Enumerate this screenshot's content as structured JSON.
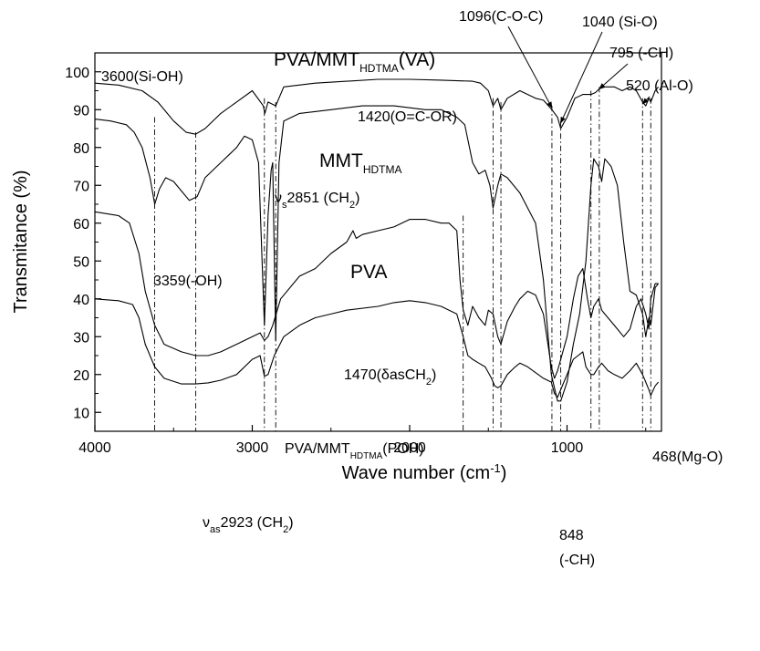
{
  "chart_data": {
    "type": "line",
    "title": "",
    "xlabel": "Wave number (cm-1)",
    "ylabel": "Transmitance (%)",
    "x_reversed": true,
    "xlim": [
      4000,
      400
    ],
    "ylim": [
      5,
      105
    ],
    "x_ticks": [
      4000,
      3000,
      2000,
      1000
    ],
    "y_ticks": [
      10,
      20,
      30,
      40,
      50,
      60,
      70,
      80,
      90,
      100
    ],
    "grid": false,
    "series": [
      {
        "name": "PVA/MMT_HDTMA (VA)",
        "points": [
          [
            4000,
            97
          ],
          [
            3850,
            96.5
          ],
          [
            3700,
            95
          ],
          [
            3600,
            92
          ],
          [
            3500,
            87
          ],
          [
            3420,
            84
          ],
          [
            3360,
            83.5
          ],
          [
            3300,
            85
          ],
          [
            3200,
            89
          ],
          [
            3100,
            92
          ],
          [
            3000,
            95
          ],
          [
            2930,
            91
          ],
          [
            2920,
            89
          ],
          [
            2900,
            92
          ],
          [
            2851,
            91
          ],
          [
            2800,
            96
          ],
          [
            2600,
            97
          ],
          [
            2400,
            97.5
          ],
          [
            2200,
            98
          ],
          [
            2000,
            98
          ],
          [
            1800,
            97.8
          ],
          [
            1600,
            97.5
          ],
          [
            1550,
            97
          ],
          [
            1500,
            95
          ],
          [
            1470,
            91
          ],
          [
            1440,
            93
          ],
          [
            1420,
            90
          ],
          [
            1380,
            93
          ],
          [
            1300,
            95
          ],
          [
            1200,
            93
          ],
          [
            1150,
            92.5
          ],
          [
            1096,
            90
          ],
          [
            1060,
            88
          ],
          [
            1040,
            85
          ],
          [
            1000,
            88
          ],
          [
            950,
            93
          ],
          [
            900,
            94
          ],
          [
            848,
            94
          ],
          [
            820,
            94.5
          ],
          [
            795,
            95.5
          ],
          [
            760,
            96
          ],
          [
            700,
            96
          ],
          [
            650,
            95
          ],
          [
            600,
            96
          ],
          [
            560,
            95
          ],
          [
            520,
            92
          ],
          [
            500,
            91
          ],
          [
            480,
            93
          ],
          [
            468,
            92
          ],
          [
            440,
            95
          ],
          [
            420,
            96
          ]
        ]
      },
      {
        "name": "MMT_HDTMA",
        "points": [
          [
            4000,
            87.5
          ],
          [
            3900,
            87
          ],
          [
            3800,
            86
          ],
          [
            3750,
            84
          ],
          [
            3700,
            80
          ],
          [
            3650,
            72
          ],
          [
            3620,
            65
          ],
          [
            3590,
            69
          ],
          [
            3550,
            72
          ],
          [
            3500,
            71
          ],
          [
            3450,
            68.5
          ],
          [
            3400,
            66
          ],
          [
            3350,
            67
          ],
          [
            3300,
            72
          ],
          [
            3200,
            76
          ],
          [
            3100,
            80
          ],
          [
            3050,
            83
          ],
          [
            3000,
            82
          ],
          [
            2960,
            76
          ],
          [
            2923,
            33
          ],
          [
            2900,
            62
          ],
          [
            2880,
            74
          ],
          [
            2870,
            76
          ],
          [
            2851,
            29
          ],
          [
            2830,
            76
          ],
          [
            2800,
            87
          ],
          [
            2700,
            89
          ],
          [
            2500,
            90
          ],
          [
            2300,
            91
          ],
          [
            2100,
            91
          ],
          [
            1900,
            90
          ],
          [
            1800,
            90
          ],
          [
            1700,
            88
          ],
          [
            1650,
            86
          ],
          [
            1600,
            76
          ],
          [
            1560,
            73
          ],
          [
            1520,
            74
          ],
          [
            1490,
            70
          ],
          [
            1470,
            64
          ],
          [
            1440,
            70
          ],
          [
            1420,
            73
          ],
          [
            1380,
            72
          ],
          [
            1300,
            68
          ],
          [
            1200,
            60
          ],
          [
            1150,
            45
          ],
          [
            1100,
            20
          ],
          [
            1060,
            13
          ],
          [
            1040,
            13
          ],
          [
            1000,
            18
          ],
          [
            960,
            28
          ],
          [
            920,
            36
          ],
          [
            880,
            50
          ],
          [
            848,
            70
          ],
          [
            830,
            77
          ],
          [
            815,
            76
          ],
          [
            800,
            75
          ],
          [
            780,
            71
          ],
          [
            760,
            77
          ],
          [
            720,
            75
          ],
          [
            680,
            70
          ],
          [
            640,
            55
          ],
          [
            600,
            42
          ],
          [
            560,
            41
          ],
          [
            520,
            36
          ],
          [
            500,
            30
          ],
          [
            480,
            35
          ],
          [
            468,
            33
          ],
          [
            440,
            43
          ],
          [
            420,
            44
          ]
        ]
      },
      {
        "name": "PVA",
        "points": [
          [
            4000,
            63
          ],
          [
            3850,
            62
          ],
          [
            3780,
            60
          ],
          [
            3720,
            52
          ],
          [
            3680,
            42
          ],
          [
            3620,
            33
          ],
          [
            3560,
            28
          ],
          [
            3450,
            26
          ],
          [
            3360,
            25
          ],
          [
            3280,
            25
          ],
          [
            3200,
            26
          ],
          [
            3100,
            28
          ],
          [
            3000,
            30
          ],
          [
            2950,
            31
          ],
          [
            2923,
            29
          ],
          [
            2900,
            30
          ],
          [
            2870,
            33
          ],
          [
            2820,
            40
          ],
          [
            2700,
            46
          ],
          [
            2600,
            48
          ],
          [
            2500,
            52
          ],
          [
            2400,
            55
          ],
          [
            2360,
            58
          ],
          [
            2340,
            56
          ],
          [
            2300,
            57
          ],
          [
            2200,
            58
          ],
          [
            2100,
            59
          ],
          [
            2000,
            61
          ],
          [
            1900,
            61
          ],
          [
            1800,
            60
          ],
          [
            1750,
            60
          ],
          [
            1700,
            58
          ],
          [
            1680,
            45
          ],
          [
            1660,
            37
          ],
          [
            1630,
            33
          ],
          [
            1600,
            38
          ],
          [
            1560,
            35
          ],
          [
            1520,
            33
          ],
          [
            1500,
            37
          ],
          [
            1470,
            36
          ],
          [
            1440,
            30
          ],
          [
            1420,
            28
          ],
          [
            1380,
            34
          ],
          [
            1330,
            38
          ],
          [
            1300,
            40
          ],
          [
            1250,
            42
          ],
          [
            1200,
            41
          ],
          [
            1150,
            36
          ],
          [
            1100,
            22
          ],
          [
            1080,
            19
          ],
          [
            1060,
            21
          ],
          [
            1040,
            24
          ],
          [
            1000,
            30
          ],
          [
            960,
            40
          ],
          [
            930,
            46
          ],
          [
            900,
            48
          ],
          [
            870,
            40
          ],
          [
            848,
            35
          ],
          [
            830,
            38
          ],
          [
            800,
            40
          ],
          [
            780,
            37
          ],
          [
            760,
            36
          ],
          [
            720,
            34
          ],
          [
            680,
            32
          ],
          [
            640,
            30
          ],
          [
            600,
            32
          ],
          [
            560,
            38
          ],
          [
            530,
            40
          ],
          [
            500,
            36
          ],
          [
            480,
            32
          ],
          [
            468,
            40
          ],
          [
            440,
            44
          ],
          [
            420,
            44
          ]
        ]
      },
      {
        "name": "PVA/MMT_HDTMA (POH)",
        "points": [
          [
            4000,
            40
          ],
          [
            3850,
            39.5
          ],
          [
            3760,
            38.5
          ],
          [
            3720,
            35
          ],
          [
            3680,
            28
          ],
          [
            3620,
            22
          ],
          [
            3560,
            19
          ],
          [
            3450,
            17.5
          ],
          [
            3360,
            17.5
          ],
          [
            3280,
            17.8
          ],
          [
            3200,
            18.5
          ],
          [
            3100,
            20
          ],
          [
            3000,
            24
          ],
          [
            2950,
            25
          ],
          [
            2923,
            19.5
          ],
          [
            2900,
            20
          ],
          [
            2860,
            25
          ],
          [
            2800,
            30
          ],
          [
            2700,
            33
          ],
          [
            2600,
            35
          ],
          [
            2500,
            36
          ],
          [
            2400,
            37
          ],
          [
            2200,
            38
          ],
          [
            2100,
            39
          ],
          [
            2000,
            39.5
          ],
          [
            1900,
            39
          ],
          [
            1800,
            38
          ],
          [
            1700,
            36
          ],
          [
            1660,
            30
          ],
          [
            1630,
            25
          ],
          [
            1600,
            24
          ],
          [
            1560,
            23
          ],
          [
            1520,
            22
          ],
          [
            1480,
            19
          ],
          [
            1460,
            17
          ],
          [
            1440,
            16.5
          ],
          [
            1420,
            17
          ],
          [
            1380,
            20
          ],
          [
            1330,
            22
          ],
          [
            1300,
            23
          ],
          [
            1250,
            22
          ],
          [
            1200,
            20.5
          ],
          [
            1150,
            19
          ],
          [
            1100,
            18
          ],
          [
            1080,
            15
          ],
          [
            1060,
            14
          ],
          [
            1040,
            16
          ],
          [
            1000,
            20
          ],
          [
            960,
            24
          ],
          [
            930,
            25
          ],
          [
            900,
            26
          ],
          [
            880,
            22
          ],
          [
            848,
            20
          ],
          [
            830,
            20
          ],
          [
            800,
            22
          ],
          [
            780,
            23
          ],
          [
            740,
            21
          ],
          [
            700,
            20
          ],
          [
            650,
            19
          ],
          [
            600,
            21
          ],
          [
            560,
            23
          ],
          [
            520,
            20
          ],
          [
            500,
            18
          ],
          [
            480,
            16
          ],
          [
            468,
            14.5
          ],
          [
            440,
            17
          ],
          [
            420,
            18
          ]
        ]
      }
    ],
    "series_labels": [
      {
        "text": "PVA/MMT",
        "sub": "HDTMA",
        "suffix": "(VA)"
      },
      {
        "text": "MMT",
        "sub": "HDTMA",
        "suffix": ""
      },
      {
        "text": "PVA",
        "sub": "",
        "suffix": ""
      },
      {
        "text": "PVA/MMT",
        "sub": "HDTMA",
        "suffix": "(POH)"
      }
    ],
    "reference_lines_x": [
      3620,
      3359,
      2923,
      2851,
      1660,
      1470,
      1420,
      1096,
      1040,
      848,
      795,
      520,
      468
    ],
    "annotations": [
      {
        "text": "3600(Si-OH)"
      },
      {
        "text": "1096(C-O-C)"
      },
      {
        "text": "1040 (Si-O)"
      },
      {
        "text": "795 (-CH)"
      },
      {
        "text": "520 (Al-O)"
      },
      {
        "text": "1420(O=C-OR)"
      },
      {
        "text": "2851 (CH",
        "prefix": "ν",
        "prefix_sub": "s",
        "sub": "2",
        "suffix": ")"
      },
      {
        "text": "3359(-OH)"
      },
      {
        "text": "1470(δasCH",
        "sub": "2",
        "suffix": ")"
      },
      {
        "text": "468(Mg-O)"
      },
      {
        "text": "2923 (CH",
        "prefix": "ν",
        "prefix_sub": "as",
        "sub": "2",
        "suffix": ")"
      },
      {
        "text": "848"
      },
      {
        "text": "(-CH)"
      }
    ],
    "xlabel_parts": {
      "main": "Wave number (cm",
      "sup": "-1",
      "end": ")"
    }
  }
}
